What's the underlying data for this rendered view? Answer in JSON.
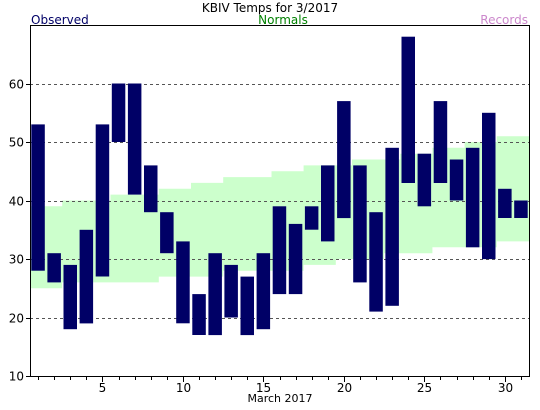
{
  "chart_data": {
    "type": "bar",
    "title": "KBIV Temps for 3/2017",
    "legend": [
      {
        "label": "Observed",
        "color": "#000066"
      },
      {
        "label": "Normals",
        "color": "#008000"
      },
      {
        "label": "Records",
        "color": "#cc88cc"
      }
    ],
    "xlabel": "March 2017",
    "xlim": [
      0.5,
      31.5
    ],
    "ylim": [
      10,
      70
    ],
    "xticks_labeled": [
      5,
      10,
      15,
      20,
      25,
      30
    ],
    "yticks": [
      10,
      20,
      30,
      40,
      50,
      60
    ],
    "grid": "horizontal dashed",
    "colors": {
      "observed": "#000066",
      "normals": "#ccffcc"
    },
    "days": [
      1,
      2,
      3,
      4,
      5,
      6,
      7,
      8,
      9,
      10,
      11,
      12,
      13,
      14,
      15,
      16,
      17,
      18,
      19,
      20,
      21,
      22,
      23,
      24,
      25,
      26,
      27,
      28,
      29,
      30,
      31
    ],
    "observed_high": [
      53,
      31,
      29,
      35,
      53,
      60,
      60,
      46,
      38,
      33,
      24,
      31,
      29,
      27,
      31,
      39,
      36,
      39,
      46,
      57,
      46,
      38,
      49,
      68,
      48,
      57,
      47,
      49,
      55,
      42,
      40
    ],
    "observed_low": [
      28,
      26,
      18,
      19,
      27,
      50,
      41,
      38,
      31,
      19,
      17,
      17,
      20,
      17,
      18,
      24,
      24,
      35,
      33,
      37,
      26,
      21,
      22,
      43,
      39,
      43,
      40,
      32,
      30,
      37,
      37
    ],
    "normal_high": [
      39,
      39,
      40,
      40,
      40,
      41,
      41,
      41,
      42,
      42,
      43,
      43,
      44,
      44,
      44,
      45,
      45,
      46,
      46,
      46,
      47,
      47,
      47,
      48,
      48,
      49,
      49,
      50,
      50,
      51,
      51
    ],
    "normal_low": [
      25,
      25,
      26,
      26,
      26,
      26,
      26,
      26,
      27,
      27,
      27,
      27,
      28,
      28,
      28,
      28,
      28,
      29,
      29,
      30,
      30,
      30,
      31,
      31,
      31,
      32,
      32,
      32,
      32,
      33,
      33
    ]
  }
}
